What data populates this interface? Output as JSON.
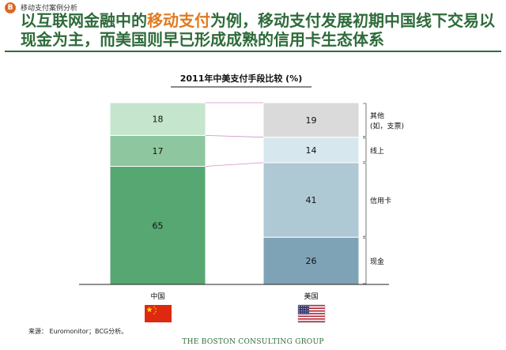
{
  "badge": "B",
  "breadcrumb": "移动支付案例分析",
  "headline": {
    "part1": "以互联网金融中的",
    "highlight": "移动支付",
    "part2": "为例，移动支付发展初期中国线下交易以现金为主，而美国则早已形成成熟的信用卡生态体系"
  },
  "chart_data": {
    "type": "bar",
    "stacked": true,
    "title": "2011年中美支付手段比较 (%)",
    "categories": [
      "中国",
      "美国"
    ],
    "series": [
      {
        "name": "现金",
        "values": [
          65,
          26
        ],
        "colors": [
          "#57a773",
          "#7fa3b6"
        ]
      },
      {
        "name": "信用卡",
        "values": [
          null,
          41
        ],
        "colors": [
          "#57a773",
          "#aec8d4"
        ]
      },
      {
        "name": "线上",
        "values": [
          17,
          14
        ],
        "colors": [
          "#8ec79f",
          "#d6e7ee"
        ]
      },
      {
        "name": "其他",
        "values": [
          18,
          19
        ],
        "colors": [
          "#c5e5cd",
          "#dadada"
        ]
      }
    ],
    "ylim": [
      0,
      100
    ],
    "legend_labels": [
      "其他\n(如，支票)",
      "线上",
      "信用卡",
      "现金"
    ],
    "legend_placement": "right"
  },
  "source": "来源： Euromonitor；BCG分析。",
  "footer": "THE BOSTON CONSULTING GROUP",
  "flag_icons": [
    "china-flag-icon",
    "usa-flag-icon"
  ]
}
